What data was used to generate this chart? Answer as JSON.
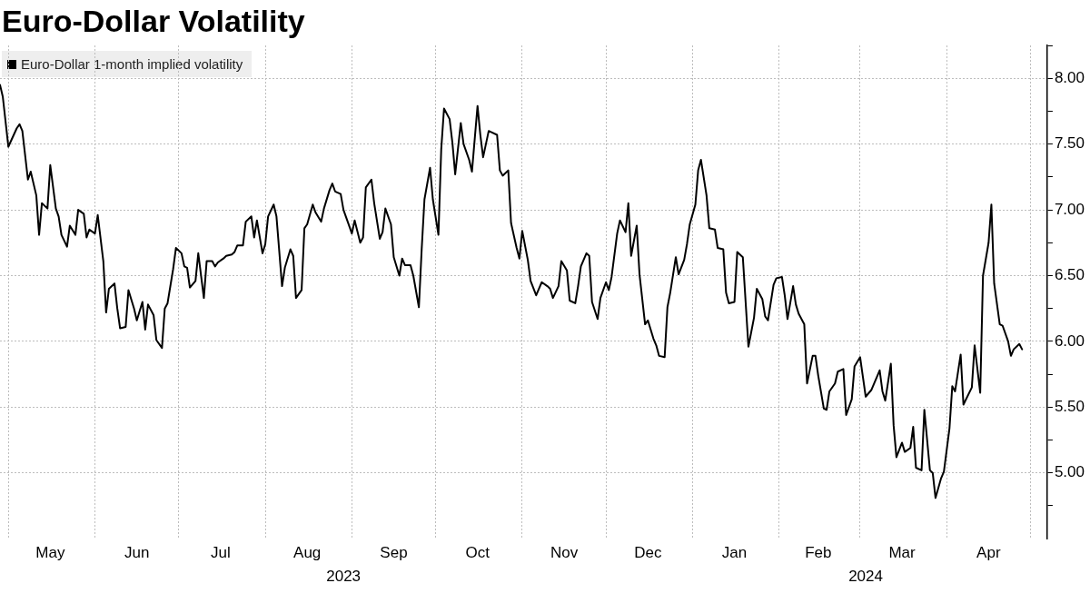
{
  "chart_data": {
    "type": "line",
    "title": "Euro-Dollar Volatility",
    "x": [
      "2023-04-28",
      "2023-04-29",
      "2023-05-01",
      "2023-05-04",
      "2023-05-05",
      "2023-05-06",
      "2023-05-08",
      "2023-05-09",
      "2023-05-11",
      "2023-05-12",
      "2023-05-13",
      "2023-05-15",
      "2023-05-16",
      "2023-05-18",
      "2023-05-19",
      "2023-05-20",
      "2023-05-22",
      "2023-05-23",
      "2023-05-25",
      "2023-05-26",
      "2023-05-28",
      "2023-05-29",
      "2023-05-30",
      "2023-06-01",
      "2023-06-02",
      "2023-06-04",
      "2023-06-05",
      "2023-06-06",
      "2023-06-08",
      "2023-06-09",
      "2023-06-10",
      "2023-06-12",
      "2023-06-13",
      "2023-06-15",
      "2023-06-16",
      "2023-06-18",
      "2023-06-19",
      "2023-06-20",
      "2023-06-22",
      "2023-06-23",
      "2023-06-25",
      "2023-06-26",
      "2023-06-27",
      "2023-06-29",
      "2023-06-30",
      "2023-07-02",
      "2023-07-03",
      "2023-07-04",
      "2023-07-05",
      "2023-07-07",
      "2023-07-08",
      "2023-07-10",
      "2023-07-11",
      "2023-07-13",
      "2023-07-14",
      "2023-07-15",
      "2023-07-17",
      "2023-07-18",
      "2023-07-20",
      "2023-07-21",
      "2023-07-22",
      "2023-07-24",
      "2023-07-25",
      "2023-07-27",
      "2023-07-28",
      "2023-07-29",
      "2023-07-31",
      "2023-08-01",
      "2023-08-02",
      "2023-08-04",
      "2023-08-05",
      "2023-08-07",
      "2023-08-08",
      "2023-08-10",
      "2023-08-11",
      "2023-08-12",
      "2023-08-14",
      "2023-08-15",
      "2023-08-16",
      "2023-08-18",
      "2023-08-19",
      "2023-08-21",
      "2023-08-22",
      "2023-08-24",
      "2023-08-25",
      "2023-08-26",
      "2023-08-28",
      "2023-08-29",
      "2023-08-31",
      "2023-09-01",
      "2023-09-02",
      "2023-09-04",
      "2023-09-05",
      "2023-09-06",
      "2023-09-08",
      "2023-09-09",
      "2023-09-11",
      "2023-09-12",
      "2023-09-13",
      "2023-09-15",
      "2023-09-16",
      "2023-09-18",
      "2023-09-19",
      "2023-09-20",
      "2023-09-22",
      "2023-09-23",
      "2023-09-25",
      "2023-09-26",
      "2023-09-27",
      "2023-09-29",
      "2023-09-30",
      "2023-10-02",
      "2023-10-03",
      "2023-10-04",
      "2023-10-06",
      "2023-10-07",
      "2023-10-08",
      "2023-10-10",
      "2023-10-11",
      "2023-10-13",
      "2023-10-14",
      "2023-10-16",
      "2023-10-17",
      "2023-10-18",
      "2023-10-20",
      "2023-10-21",
      "2023-10-23",
      "2023-10-24",
      "2023-10-25",
      "2023-10-27",
      "2023-10-28",
      "2023-10-30",
      "2023-10-31",
      "2023-11-01",
      "2023-11-03",
      "2023-11-04",
      "2023-11-06",
      "2023-11-07",
      "2023-11-08",
      "2023-11-10",
      "2023-11-11",
      "2023-11-12",
      "2023-11-14",
      "2023-11-15",
      "2023-11-17",
      "2023-11-18",
      "2023-11-20",
      "2023-11-21",
      "2023-11-22",
      "2023-11-24",
      "2023-11-25",
      "2023-11-26",
      "2023-11-28",
      "2023-11-29",
      "2023-12-01",
      "2023-12-02",
      "2023-12-03",
      "2023-12-05",
      "2023-12-06",
      "2023-12-08",
      "2023-12-09",
      "2023-12-10",
      "2023-12-12",
      "2023-12-13",
      "2023-12-15",
      "2023-12-16",
      "2023-12-18",
      "2023-12-19",
      "2023-12-20",
      "2023-12-22",
      "2023-12-23",
      "2023-12-24",
      "2023-12-26",
      "2023-12-27",
      "2023-12-29",
      "2023-12-30",
      "2023-12-31",
      "2024-01-02",
      "2024-01-03",
      "2024-01-04",
      "2024-01-06",
      "2024-01-07",
      "2024-01-09",
      "2024-01-10",
      "2024-01-12",
      "2024-01-13",
      "2024-01-14",
      "2024-01-16",
      "2024-01-17",
      "2024-01-19",
      "2024-01-21",
      "2024-01-23",
      "2024-01-24",
      "2024-01-26",
      "2024-01-27",
      "2024-01-28",
      "2024-01-30",
      "2024-01-31",
      "2024-02-02",
      "2024-02-03",
      "2024-02-04",
      "2024-02-06",
      "2024-02-07",
      "2024-02-08",
      "2024-02-10",
      "2024-02-11",
      "2024-02-13",
      "2024-02-14",
      "2024-02-15",
      "2024-02-17",
      "2024-02-18",
      "2024-02-19",
      "2024-02-21",
      "2024-02-22",
      "2024-02-24",
      "2024-02-25",
      "2024-02-27",
      "2024-02-28",
      "2024-03-01",
      "2024-03-02",
      "2024-03-03",
      "2024-03-05",
      "2024-03-06",
      "2024-03-08",
      "2024-03-09",
      "2024-03-10",
      "2024-03-12",
      "2024-03-13",
      "2024-03-14",
      "2024-03-16",
      "2024-03-17",
      "2024-03-19",
      "2024-03-20",
      "2024-03-21",
      "2024-03-23",
      "2024-03-24",
      "2024-03-26",
      "2024-03-27",
      "2024-03-28",
      "2024-03-30",
      "2024-03-31",
      "2024-04-02",
      "2024-04-03",
      "2024-04-04",
      "2024-04-06",
      "2024-04-07",
      "2024-04-10",
      "2024-04-11",
      "2024-04-13",
      "2024-04-14",
      "2024-04-16",
      "2024-04-17",
      "2024-04-18",
      "2024-04-20",
      "2024-04-21",
      "2024-04-23",
      "2024-04-24",
      "2024-04-25",
      "2024-04-27",
      "2024-04-28"
    ],
    "series": [
      {
        "name": "Euro-Dollar 1-month implied volatility",
        "color": "#000000",
        "values": [
          7.95,
          7.86,
          7.48,
          7.62,
          7.65,
          7.6,
          7.23,
          7.29,
          7.11,
          6.81,
          7.05,
          7.01,
          7.34,
          7.01,
          6.95,
          6.81,
          6.72,
          6.88,
          6.81,
          7.0,
          6.97,
          6.79,
          6.85,
          6.82,
          6.96,
          6.61,
          6.22,
          6.4,
          6.44,
          6.25,
          6.1,
          6.11,
          6.39,
          6.25,
          6.16,
          6.3,
          6.09,
          6.28,
          6.2,
          6.01,
          5.95,
          6.25,
          6.29,
          6.55,
          6.71,
          6.67,
          6.57,
          6.56,
          6.41,
          6.46,
          6.67,
          6.33,
          6.61,
          6.61,
          6.57,
          6.6,
          6.63,
          6.65,
          6.66,
          6.68,
          6.73,
          6.73,
          6.91,
          6.95,
          6.79,
          6.92,
          6.67,
          6.74,
          6.95,
          7.04,
          6.95,
          6.42,
          6.56,
          6.7,
          6.65,
          6.33,
          6.39,
          6.86,
          6.89,
          7.04,
          6.98,
          6.91,
          7.01,
          7.15,
          7.2,
          7.14,
          7.12,
          7.0,
          6.88,
          6.82,
          6.92,
          6.75,
          6.79,
          7.17,
          7.23,
          7.05,
          6.78,
          6.83,
          7.01,
          6.89,
          6.64,
          6.5,
          6.63,
          6.58,
          6.58,
          6.5,
          6.26,
          6.7,
          7.08,
          7.32,
          7.08,
          6.81,
          7.46,
          7.77,
          7.69,
          7.51,
          7.27,
          7.66,
          7.5,
          7.38,
          7.29,
          7.79,
          7.57,
          7.4,
          7.6,
          7.59,
          7.57,
          7.3,
          7.26,
          7.3,
          6.9,
          6.71,
          6.63,
          6.84,
          6.62,
          6.46,
          6.35,
          6.4,
          6.45,
          6.42,
          6.4,
          6.33,
          6.42,
          6.61,
          6.54,
          6.31,
          6.29,
          6.42,
          6.57,
          6.67,
          6.65,
          6.3,
          6.17,
          6.33,
          6.45,
          6.39,
          6.49,
          6.82,
          6.92,
          6.83,
          7.05,
          6.65,
          6.88,
          6.51,
          6.13,
          6.16,
          6.02,
          5.97,
          5.89,
          5.88,
          6.26,
          6.37,
          6.64,
          6.51,
          6.62,
          6.74,
          6.89,
          7.04,
          7.3,
          7.38,
          7.11,
          6.86,
          6.85,
          6.71,
          6.7,
          6.37,
          6.29,
          6.3,
          6.68,
          6.64,
          5.96,
          6.18,
          6.4,
          6.32,
          6.19,
          6.16,
          6.43,
          6.48,
          6.49,
          6.35,
          6.17,
          6.42,
          6.28,
          6.21,
          6.13,
          5.68,
          5.89,
          5.89,
          5.74,
          5.49,
          5.48,
          5.62,
          5.68,
          5.77,
          5.79,
          5.44,
          5.56,
          5.81,
          5.88,
          5.73,
          5.58,
          5.63,
          5.68,
          5.78,
          5.62,
          5.55,
          5.83,
          5.36,
          5.12,
          5.23,
          5.16,
          5.19,
          5.35,
          5.04,
          5.02,
          5.48,
          5.02,
          5.0,
          4.81,
          4.96,
          5.01,
          5.34,
          5.66,
          5.62,
          5.9,
          5.52,
          5.65,
          5.97,
          5.61,
          6.5,
          6.75,
          7.04,
          6.44,
          6.13,
          6.12,
          6.0,
          5.89,
          5.94,
          5.98,
          5.94
        ]
      }
    ],
    "xlim": [
      "2023-04-28",
      "2024-05-07"
    ],
    "xticks": [
      {
        "value": "2023-05-01",
        "label": null
      },
      {
        "value": "2023-05-16",
        "label": "May"
      },
      {
        "value": "2023-06-01",
        "label": null
      },
      {
        "value": "2023-06-16",
        "label": "Jun"
      },
      {
        "value": "2023-07-01",
        "label": null
      },
      {
        "value": "2023-07-16",
        "label": "Jul"
      },
      {
        "value": "2023-08-01",
        "label": null
      },
      {
        "value": "2023-08-16",
        "label": "Aug"
      },
      {
        "value": "2023-09-01",
        "label": null
      },
      {
        "value": "2023-09-16",
        "label": "Sep"
      },
      {
        "value": "2023-10-01",
        "label": null
      },
      {
        "value": "2023-10-16",
        "label": "Oct"
      },
      {
        "value": "2023-11-01",
        "label": null
      },
      {
        "value": "2023-11-16",
        "label": "Nov"
      },
      {
        "value": "2023-12-01",
        "label": null
      },
      {
        "value": "2023-12-16",
        "label": "Dec"
      },
      {
        "value": "2024-01-01",
        "label": null
      },
      {
        "value": "2024-01-16",
        "label": "Jan"
      },
      {
        "value": "2024-02-01",
        "label": null
      },
      {
        "value": "2024-02-15",
        "label": "Feb"
      },
      {
        "value": "2024-03-01",
        "label": null
      },
      {
        "value": "2024-03-16",
        "label": "Mar"
      },
      {
        "value": "2024-04-01",
        "label": null
      },
      {
        "value": "2024-04-16",
        "label": "Apr"
      },
      {
        "value": "2024-05-01",
        "label": null
      }
    ],
    "x2lim": [
      "2023-04-28",
      "2024-05-07"
    ],
    "x2ticks": [
      {
        "value": "2023-08-29",
        "label": "2023"
      },
      {
        "value": "2024-03-03",
        "label": "2024"
      }
    ],
    "ylim": [
      4.5,
      8.25
    ],
    "yticks": [
      {
        "value": 4.75,
        "label": null
      },
      {
        "value": 5,
        "label": "5.00"
      },
      {
        "value": 5.25,
        "label": null
      },
      {
        "value": 5.5,
        "label": "5.50"
      },
      {
        "value": 5.75,
        "label": null
      },
      {
        "value": 6,
        "label": "6.00"
      },
      {
        "value": 6.25,
        "label": null
      },
      {
        "value": 6.5,
        "label": "6.50"
      },
      {
        "value": 6.75,
        "label": null
      },
      {
        "value": 7,
        "label": "7.00"
      },
      {
        "value": 7.25,
        "label": null
      },
      {
        "value": 7.5,
        "label": "7.50"
      },
      {
        "value": 7.75,
        "label": null
      },
      {
        "value": 8,
        "label": "8.00"
      },
      {
        "value": 8.25,
        "label": null
      }
    ],
    "grid": true,
    "legend": "top left",
    "line_style": "solid"
  }
}
